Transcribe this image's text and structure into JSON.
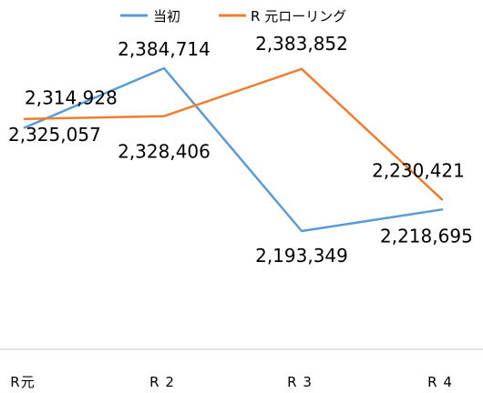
{
  "chart_data": {
    "type": "line",
    "categories": [
      "R元",
      "R 2",
      "R 3",
      "R 4"
    ],
    "series": [
      {
        "name": "当初",
        "color": "#5B9BD5",
        "values": [
          2314928,
          2384714,
          2193349,
          2218695
        ]
      },
      {
        "name": "R 元ローリング",
        "color": "#ED7D31",
        "values": [
          2325057,
          2328406,
          2383852,
          2230421
        ]
      }
    ],
    "legend_position": "top",
    "grid": false
  }
}
